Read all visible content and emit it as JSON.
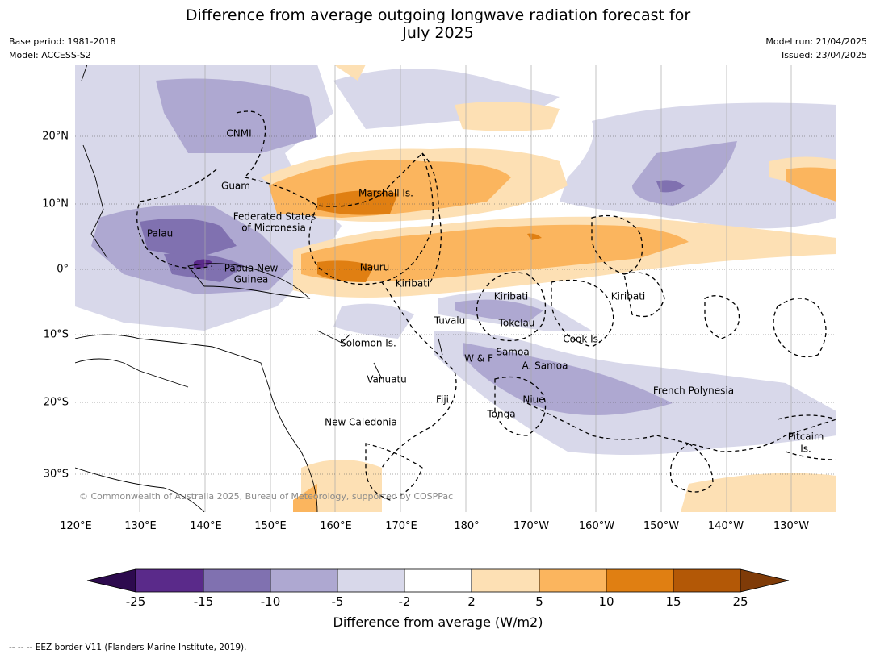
{
  "header": {
    "title_line1": "Difference from average outgoing longwave radiation forecast for",
    "title_line2": "July 2025",
    "base_period": "Base period: 1981-2018",
    "model": "Model: ACCESS-S2",
    "model_run": "Model run: 21/04/2025",
    "issued": "Issued: 23/04/2025"
  },
  "map": {
    "lat_ticks": [
      "20°N",
      "10°N",
      "0°",
      "10°S",
      "20°S",
      "30°S"
    ],
    "lon_ticks": [
      "120°E",
      "130°E",
      "140°E",
      "150°E",
      "160°E",
      "170°E",
      "180°",
      "170°W",
      "160°W",
      "150°W",
      "140°W",
      "130°W"
    ],
    "places": {
      "cnmi": "CNMI",
      "guam": "Guam",
      "marshall": "Marshall Is.",
      "fsm_1": "Federated States",
      "fsm_2": "of Micronesia",
      "palau": "Palau",
      "png_1": "Papua New",
      "png_2": "Guinea",
      "nauru": "Nauru",
      "kiribati_w": "Kiribati",
      "kiribati_c": "Kiribati",
      "kiribati_e": "Kiribati",
      "tuvalu": "Tuvalu",
      "tokelau": "Tokelau",
      "cook": "Cook Is.",
      "solomon": "Solomon Is.",
      "samoa": "Samoa",
      "wf": "W & F",
      "asamoa": "A. Samoa",
      "vanuatu": "Vanuatu",
      "fiji": "Fiji",
      "niue": "Niue",
      "tonga": "Tonga",
      "french_polynesia": "French Polynesia",
      "new_caledonia": "New Caledonia",
      "pitcairn_1": "Pitcairn",
      "pitcairn_2": "Is."
    },
    "copyright": "© Commonwealth of Australia 2025, Bureau of Meteorology, supported by COSPPac"
  },
  "colorbar": {
    "title": "Difference from average (W/m2)",
    "ticks": [
      "-25",
      "-15",
      "-10",
      "-5",
      "-2",
      "2",
      "5",
      "10",
      "15",
      "25"
    ],
    "colors": {
      "lt_-25": "#2d0a4e",
      "-25_-15": "#5a2a8a",
      "-15_-10": "#8071b0",
      "-10_-5": "#aea8d1",
      "-5_-2": "#d8d8ea",
      "-2_2": "#ffffff",
      "2_5": "#fde0b4",
      "5_10": "#fbb55e",
      "10_15": "#e07f12",
      "15_25": "#b35806",
      "gt_25": "#7f3b08"
    }
  },
  "footnote": "--  --  -- EEZ border V11 (Flanders Marine Institute, 2019)."
}
